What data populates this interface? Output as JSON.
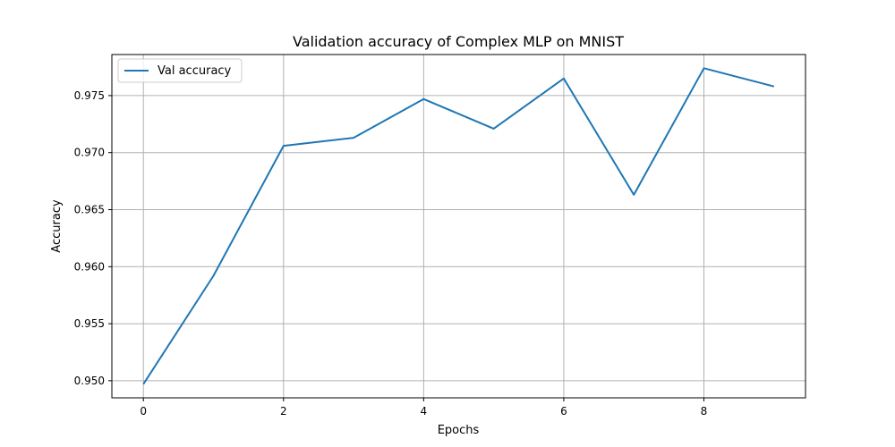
{
  "chart_data": {
    "type": "line",
    "title": "Validation accuracy of Complex MLP on MNIST",
    "xlabel": "Epochs",
    "ylabel": "Accuracy",
    "x": [
      0,
      1,
      2,
      3,
      4,
      5,
      6,
      7,
      8,
      9
    ],
    "series": [
      {
        "name": "Val accuracy",
        "color": "#1f77b4",
        "values": [
          0.9497,
          0.9592,
          0.9706,
          0.9713,
          0.9747,
          0.9721,
          0.9765,
          0.9663,
          0.9774,
          0.9758
        ]
      }
    ],
    "xlim": [
      -0.45,
      9.45
    ],
    "ylim": [
      0.9485,
      0.9786
    ],
    "xticks": [
      0,
      2,
      4,
      6,
      8
    ],
    "xtick_labels": [
      "0",
      "2",
      "4",
      "6",
      "8"
    ],
    "yticks": [
      0.95,
      0.955,
      0.96,
      0.965,
      0.97,
      0.975
    ],
    "ytick_labels": [
      "0.950",
      "0.955",
      "0.960",
      "0.965",
      "0.970",
      "0.975"
    ],
    "grid": true,
    "legend_position": "top-left"
  }
}
